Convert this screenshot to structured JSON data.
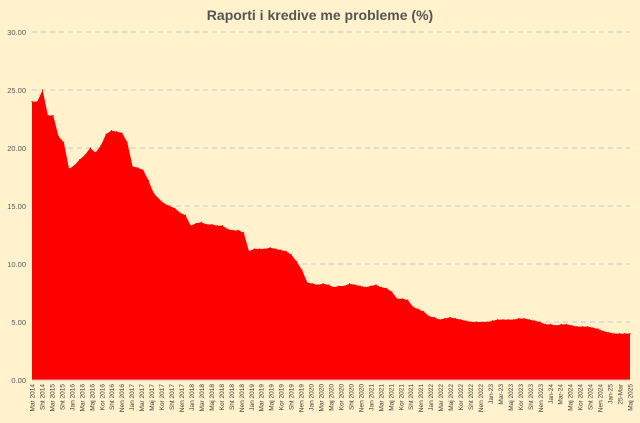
{
  "chart_data": {
    "type": "area",
    "title": "Raporti i kredive me probleme (%)",
    "xlabel": "",
    "ylabel": "",
    "ylim": [
      0,
      30
    ],
    "y_ticks": [
      "0.00",
      "5.00",
      "10.00",
      "15.00",
      "20.00",
      "25.00",
      "30.00"
    ],
    "grid": true,
    "legend": "none",
    "fill_color": "#ff0000",
    "background_color": "#fff2cc",
    "gridline_color": "#bfc9d9",
    "x_tick_labels": [
      "Mar 2014",
      "Sht 2014",
      "Mar 2015",
      "Sht 2015",
      "Jan 2016",
      "Mar 2016",
      "Maj 2016",
      "Kor 2016",
      "Sht 2016",
      "Nen 2016",
      "Jan 2017",
      "Mar 2017",
      "Maj 2017",
      "Kor 2017",
      "Sht 2017",
      "Nen 2017",
      "Jan 2018",
      "Mar 2018",
      "Maj 2018",
      "Kor 2018",
      "Sht 2018",
      "Nen 2018",
      "Jan 2019",
      "Mar 2019",
      "Maj 2019",
      "Kor 2019",
      "Sht 2019",
      "Nen 2019",
      "Jan 2020",
      "Mar 2020",
      "Maj 2020",
      "Kor 2020",
      "Sht 2020",
      "Nen 2020",
      "Jan 2021",
      "Mar 2021",
      "Maj 2021",
      "Kor 2021",
      "Sht 2021",
      "Nen 2021",
      "Jan 2022",
      "Mar 2022",
      "Maj 2022",
      "Kor 2022",
      "Sht 2022",
      "Nen 2022",
      "Jan-23",
      "Mar-23",
      "Maj 2023",
      "Kor 2023",
      "Sht 2023",
      "Nen 2023",
      "Jan-24",
      "Mar-24",
      "Maj 2024",
      "Kor 2024",
      "Sht 2024",
      "Nen 2024",
      "Jan-25",
      "25-Mar",
      "Maj 2025"
    ],
    "values": [
      24.0,
      24.0,
      25.0,
      22.8,
      22.8,
      21.0,
      20.5,
      18.2,
      18.5,
      19.0,
      19.4,
      20.0,
      19.6,
      20.2,
      21.2,
      21.5,
      21.4,
      21.3,
      20.5,
      18.4,
      18.3,
      18.1,
      17.2,
      16.1,
      15.6,
      15.2,
      15.0,
      14.8,
      14.4,
      14.2,
      13.3,
      13.5,
      13.6,
      13.4,
      13.4,
      13.3,
      13.3,
      13.0,
      12.9,
      12.9,
      12.7,
      11.1,
      11.3,
      11.3,
      11.3,
      11.4,
      11.3,
      11.2,
      11.1,
      10.8,
      10.2,
      9.5,
      8.4,
      8.3,
      8.2,
      8.3,
      8.2,
      8.0,
      8.1,
      8.1,
      8.3,
      8.2,
      8.1,
      8.0,
      8.1,
      8.2,
      8.0,
      7.9,
      7.6,
      7.0,
      7.0,
      6.9,
      6.3,
      6.1,
      5.9,
      5.5,
      5.4,
      5.2,
      5.3,
      5.4,
      5.3,
      5.2,
      5.1,
      5.0,
      5.0,
      5.0,
      5.0,
      5.1,
      5.2,
      5.2,
      5.2,
      5.2,
      5.3,
      5.3,
      5.2,
      5.1,
      5.0,
      4.8,
      4.8,
      4.7,
      4.8,
      4.8,
      4.7,
      4.6,
      4.6,
      4.6,
      4.5,
      4.4,
      4.2,
      4.1,
      4.0,
      4.0,
      4.0,
      4.0
    ]
  }
}
